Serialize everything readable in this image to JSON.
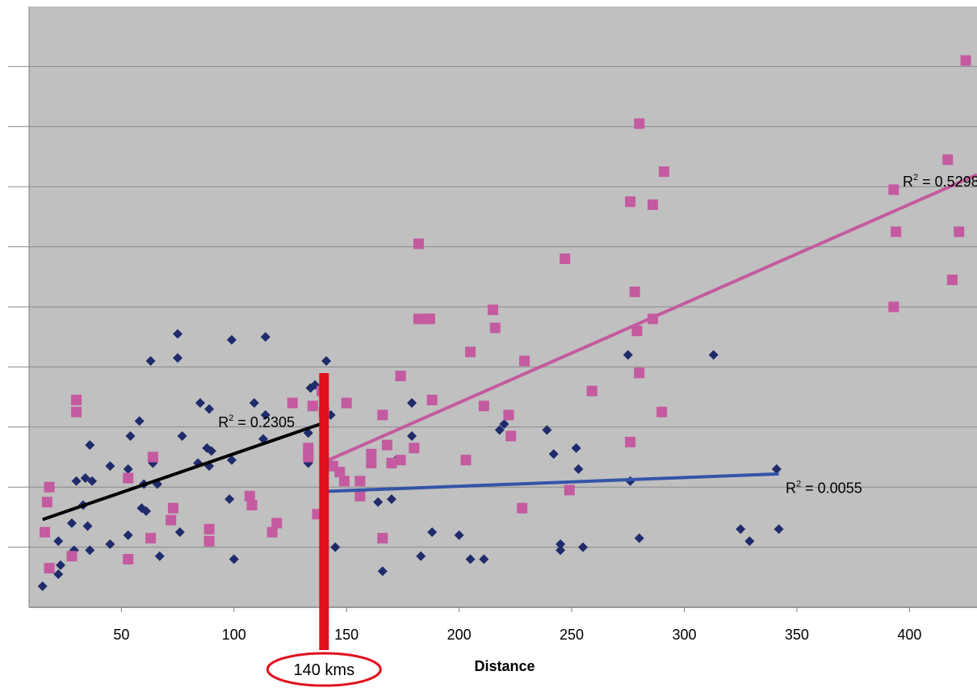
{
  "chart_data": {
    "type": "scatter",
    "title": "",
    "xlabel": "Distance",
    "ylabel": "",
    "xlim": [
      9,
      430
    ],
    "ylim": [
      0,
      10
    ],
    "x_ticks": [
      50,
      100,
      150,
      200,
      250,
      300,
      350,
      400
    ],
    "y_ticks": [
      1,
      2,
      3,
      4,
      5,
      6,
      7,
      8,
      9
    ],
    "grid": true,
    "plot_area_color": "#c0c0c0",
    "series": [
      {
        "marker": "diamond",
        "color": "#1f2b6b",
        "points": [
          [
            15,
            0.35
          ],
          [
            22,
            1.1
          ],
          [
            22,
            0.55
          ],
          [
            23,
            0.7
          ],
          [
            28,
            1.4
          ],
          [
            29,
            0.95
          ],
          [
            30,
            2.1
          ],
          [
            33,
            1.7
          ],
          [
            34,
            2.15
          ],
          [
            35,
            1.35
          ],
          [
            36,
            0.95
          ],
          [
            36,
            2.7
          ],
          [
            37,
            2.1
          ],
          [
            45,
            2.35
          ],
          [
            45,
            1.05
          ],
          [
            53,
            1.2
          ],
          [
            53,
            2.3
          ],
          [
            54,
            2.85
          ],
          [
            58,
            3.1
          ],
          [
            59,
            1.65
          ],
          [
            60,
            2.05
          ],
          [
            61,
            1.6
          ],
          [
            63,
            4.1
          ],
          [
            64,
            2.4
          ],
          [
            66,
            2.05
          ],
          [
            67,
            0.85
          ],
          [
            75,
            4.55
          ],
          [
            75,
            4.15
          ],
          [
            76,
            1.25
          ],
          [
            77,
            2.85
          ],
          [
            84,
            2.4
          ],
          [
            85,
            3.4
          ],
          [
            88,
            2.65
          ],
          [
            89,
            3.3
          ],
          [
            89,
            2.35
          ],
          [
            90,
            2.6
          ],
          [
            98,
            1.8
          ],
          [
            99,
            2.45
          ],
          [
            99,
            4.45
          ],
          [
            100,
            0.8
          ],
          [
            109,
            3.4
          ],
          [
            113,
            2.8
          ],
          [
            114,
            3.2
          ],
          [
            114,
            4.5
          ],
          [
            133,
            2.9
          ],
          [
            133,
            2.4
          ],
          [
            134,
            3.65
          ],
          [
            136,
            3.7
          ],
          [
            141,
            4.1
          ],
          [
            143,
            3.2
          ],
          [
            145,
            1.0
          ],
          [
            164,
            1.75
          ],
          [
            166,
            0.6
          ],
          [
            170,
            1.8
          ],
          [
            172,
            2.45
          ],
          [
            179,
            3.4
          ],
          [
            179,
            2.85
          ],
          [
            183,
            0.85
          ],
          [
            188,
            1.25
          ],
          [
            200,
            1.2
          ],
          [
            205,
            0.8
          ],
          [
            211,
            0.8
          ],
          [
            218,
            2.95
          ],
          [
            220,
            3.05
          ],
          [
            239,
            2.95
          ],
          [
            242,
            2.55
          ],
          [
            245,
            1.05
          ],
          [
            245,
            0.95
          ],
          [
            252,
            2.65
          ],
          [
            253,
            2.3
          ],
          [
            255,
            1.0
          ],
          [
            275,
            4.2
          ],
          [
            276,
            2.1
          ],
          [
            280,
            1.15
          ],
          [
            313,
            4.2
          ],
          [
            325,
            1.3
          ],
          [
            329,
            1.1
          ],
          [
            341,
            2.3
          ],
          [
            342,
            1.3
          ]
        ]
      },
      {
        "marker": "square",
        "color": "#c45a9f",
        "points": [
          [
            16,
            1.25
          ],
          [
            17,
            1.75
          ],
          [
            18,
            2.0
          ],
          [
            18,
            0.65
          ],
          [
            28,
            0.85
          ],
          [
            30,
            3.45
          ],
          [
            30,
            3.25
          ],
          [
            53,
            2.15
          ],
          [
            53,
            0.8
          ],
          [
            63,
            1.15
          ],
          [
            64,
            2.5
          ],
          [
            72,
            1.45
          ],
          [
            73,
            1.65
          ],
          [
            89,
            1.1
          ],
          [
            89,
            1.3
          ],
          [
            107,
            1.85
          ],
          [
            108,
            1.7
          ],
          [
            117,
            1.25
          ],
          [
            119,
            1.4
          ],
          [
            126,
            3.4
          ],
          [
            133,
            2.5
          ],
          [
            133,
            2.65
          ],
          [
            133,
            2.6
          ],
          [
            135,
            3.35
          ],
          [
            137,
            1.55
          ],
          [
            139,
            3.6
          ],
          [
            140,
            3.25
          ],
          [
            144,
            2.35
          ],
          [
            147,
            2.25
          ],
          [
            149,
            2.1
          ],
          [
            150,
            3.4
          ],
          [
            156,
            2.1
          ],
          [
            156,
            1.85
          ],
          [
            161,
            2.4
          ],
          [
            161,
            2.55
          ],
          [
            166,
            3.2
          ],
          [
            166,
            1.15
          ],
          [
            168,
            2.7
          ],
          [
            170,
            2.4
          ],
          [
            174,
            2.45
          ],
          [
            174,
            3.85
          ],
          [
            180,
            2.65
          ],
          [
            182,
            6.05
          ],
          [
            182,
            4.8
          ],
          [
            186,
            4.8
          ],
          [
            187,
            4.8
          ],
          [
            188,
            3.45
          ],
          [
            203,
            2.45
          ],
          [
            205,
            4.25
          ],
          [
            211,
            3.35
          ],
          [
            215,
            4.95
          ],
          [
            216,
            4.65
          ],
          [
            222,
            3.2
          ],
          [
            223,
            2.85
          ],
          [
            228,
            1.65
          ],
          [
            229,
            4.1
          ],
          [
            247,
            5.8
          ],
          [
            249,
            1.95
          ],
          [
            259,
            3.6
          ],
          [
            276,
            6.75
          ],
          [
            276,
            2.75
          ],
          [
            278,
            5.25
          ],
          [
            279,
            4.6
          ],
          [
            280,
            3.9
          ],
          [
            280,
            8.05
          ],
          [
            286,
            6.7
          ],
          [
            286,
            4.8
          ],
          [
            290,
            3.25
          ],
          [
            291,
            7.25
          ],
          [
            393,
            5.0
          ],
          [
            393,
            6.95
          ],
          [
            394,
            6.25
          ],
          [
            417,
            7.45
          ],
          [
            419,
            5.45
          ],
          [
            422,
            6.25
          ],
          [
            425,
            9.1
          ]
        ]
      }
    ],
    "trendlines": [
      {
        "color": "#000000",
        "from": [
          15,
          1.46
        ],
        "to": [
          140,
          3.07
        ],
        "r2_label": "0.2305",
        "r2_at": [
          110,
          3.0
        ]
      },
      {
        "color": "#3355a8",
        "from": [
          142,
          1.93
        ],
        "to": [
          342,
          2.22
        ],
        "r2_label": "0.0055",
        "r2_at": [
          362,
          1.9
        ]
      },
      {
        "color": "#c45a9f",
        "from": [
          142,
          2.45
        ],
        "to": [
          430,
          7.2
        ],
        "r2_label": "0.5298",
        "r2_at": [
          414,
          7.0
        ]
      }
    ],
    "threshold": {
      "x": 140,
      "label": "140 kms",
      "color": "#e0101e"
    }
  }
}
